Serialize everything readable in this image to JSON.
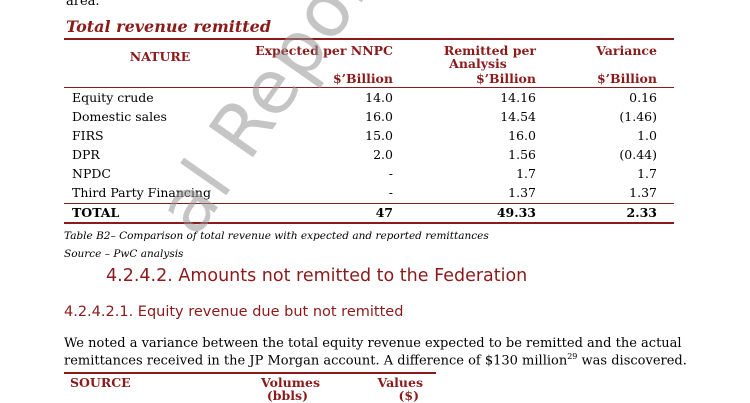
{
  "top_fragment": "area.",
  "section_title": "Total revenue remitted",
  "table": {
    "headers": {
      "nature": "NATURE",
      "expected": "Expected per NNPC",
      "remitted_line1": "Remitted per",
      "remitted_line2": "Analysis",
      "variance": "Variance",
      "unit_expected": "$’Billion",
      "unit_remitted": "$’Billion",
      "unit_variance": "$’Billion"
    },
    "rows": [
      {
        "nature": "Equity crude",
        "expected": "14.0",
        "remitted": "14.16",
        "variance": "0.16"
      },
      {
        "nature": "Domestic sales",
        "expected": "16.0",
        "remitted": "14.54",
        "variance": "(1.46)"
      },
      {
        "nature": "FIRS",
        "expected": "15.0",
        "remitted": "16.0",
        "variance": "1.0"
      },
      {
        "nature": "DPR",
        "expected": "2.0",
        "remitted": "1.56",
        "variance": "(0.44)"
      },
      {
        "nature": "NPDC",
        "expected": "-",
        "remitted": "1.7",
        "variance": "1.7"
      },
      {
        "nature": "Third Party Financing",
        "expected": "-",
        "remitted": "1.37",
        "variance": "1.37"
      }
    ],
    "total": {
      "nature": "TOTAL",
      "expected": "47",
      "remitted": "49.33",
      "variance": "2.33"
    }
  },
  "caption": "Table B2– Comparison of total revenue with expected and reported remittances",
  "source": "Source – PwC analysis",
  "heading_4242": "4.2.4.2. Amounts not remitted to the Federation",
  "heading_42421": "4.2.4.2.1. Equity revenue due but not remitted",
  "paragraph_line1": "We noted a variance between the total equity revenue expected to be remitted and the actual",
  "paragraph_line2": "remittances received in the JP Morgan account.  A difference of $130 million",
  "paragraph_footnote": "29",
  "paragraph_line2_end": " was discovered.",
  "table2": {
    "source": "SOURCE",
    "volumes": "Volumes",
    "volumes_unit": "(bbls)",
    "values": "Values",
    "values_unit": "($)"
  },
  "watermark": "al Report - AuGF's C"
}
